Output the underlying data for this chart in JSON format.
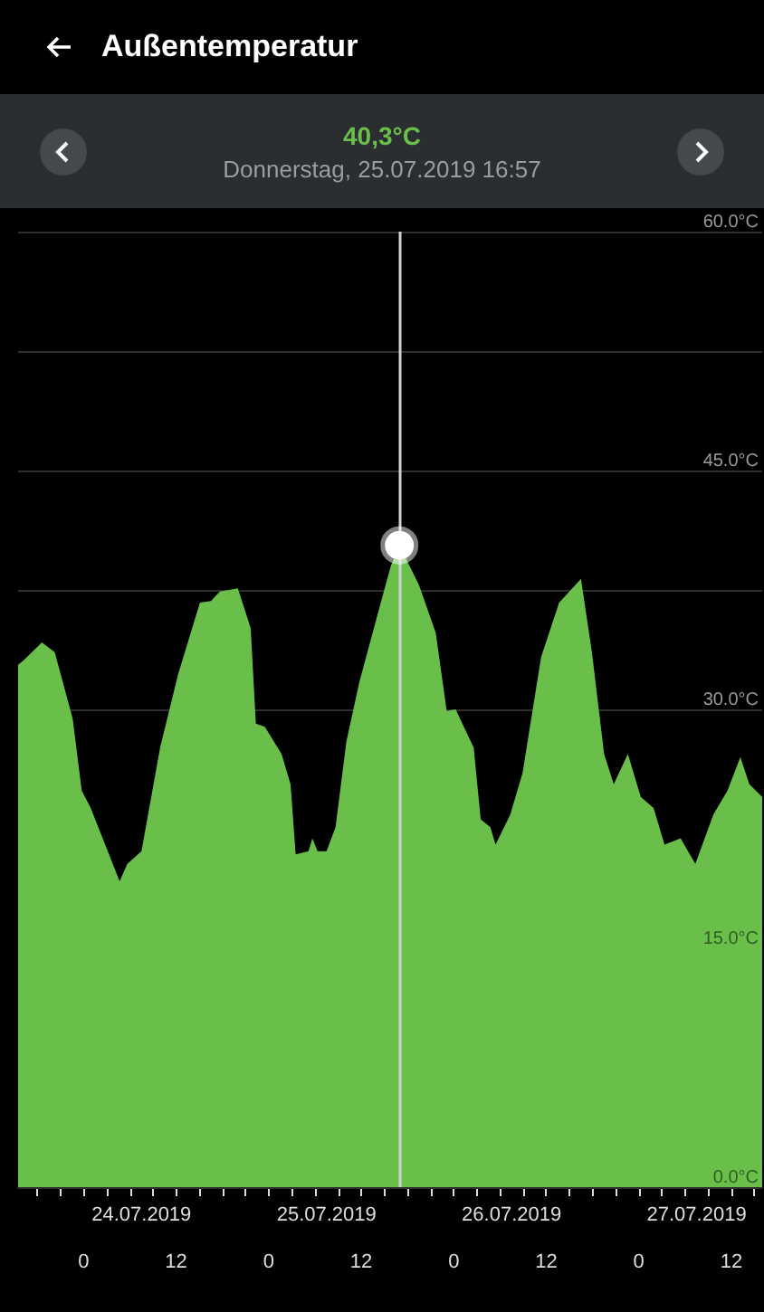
{
  "chart_data": {
    "type": "area",
    "title": "Außentemperatur",
    "annotations": [
      "40,3°C",
      "Donnerstag, 25.07.2019 16:57"
    ],
    "x": [
      "2019-07-23T15:30",
      "2019-07-23T16:15",
      "2019-07-23T18:35",
      "2019-07-23T20:15",
      "2019-07-23T22:35",
      "2019-07-23T23:45",
      "2019-07-24T00:55",
      "2019-07-24T04:40",
      "2019-07-24T05:40",
      "2019-07-24T07:30",
      "2019-07-24T09:55",
      "2019-07-24T12:15",
      "2019-07-24T15:05",
      "2019-07-24T16:30",
      "2019-07-24T17:40",
      "2019-07-24T20:00",
      "2019-07-24T21:40",
      "2019-07-24T22:20",
      "2019-07-24T23:30",
      "2019-07-25T01:40",
      "2019-07-25T02:50",
      "2019-07-25T03:30",
      "2019-07-25T05:10",
      "2019-07-25T05:40",
      "2019-07-25T06:20",
      "2019-07-25T07:30",
      "2019-07-25T08:40",
      "2019-07-25T10:05",
      "2019-07-25T11:45",
      "2019-07-25T14:05",
      "2019-07-25T15:50",
      "2019-07-25T16:57",
      "2019-07-25T19:30",
      "2019-07-25T21:40",
      "2019-07-25T23:05",
      "2019-07-26T00:15",
      "2019-07-26T02:35",
      "2019-07-26T03:30",
      "2019-07-26T04:45",
      "2019-07-26T05:25",
      "2019-07-26T07:20",
      "2019-07-26T08:55",
      "2019-07-26T11:20",
      "2019-07-26T13:40",
      "2019-07-26T16:30",
      "2019-07-26T17:55",
      "2019-07-26T19:30",
      "2019-07-26T20:45",
      "2019-07-26T22:35",
      "2019-07-27T00:15",
      "2019-07-27T01:55",
      "2019-07-27T03:20",
      "2019-07-27T05:25",
      "2019-07-27T07:20",
      "2019-07-27T09:40",
      "2019-07-27T11:30",
      "2019-07-27T13:10",
      "2019-07-27T14:20",
      "2019-07-27T16:00"
    ],
    "series": [
      {
        "color": "#6abf4b",
        "values": [
          32.8,
          33.1,
          34.2,
          33.6,
          29.4,
          24.9,
          23.8,
          19.2,
          20.3,
          21.1,
          27.6,
          32.2,
          36.7,
          36.8,
          37.4,
          37.6,
          35.1,
          29.1,
          28.9,
          27.2,
          25.3,
          20.9,
          21.1,
          21.9,
          21.1,
          21.1,
          22.6,
          28.0,
          31.7,
          35.9,
          39.0,
          40.3,
          37.8,
          34.8,
          29.9,
          30.0,
          27.6,
          23.1,
          22.6,
          21.5,
          23.4,
          26.0,
          33.3,
          36.7,
          38.2,
          33.6,
          27.2,
          25.3,
          27.2,
          24.5,
          23.8,
          21.5,
          21.9,
          20.3,
          23.4,
          24.9,
          27.0,
          25.3,
          24.5
        ]
      }
    ],
    "ylim": [
      0,
      60
    ],
    "yticks": [
      {
        "value": 0,
        "label": "0.0°C"
      },
      {
        "value": 15,
        "label": "15.0°C"
      },
      {
        "value": 30,
        "label": "30.0°C"
      },
      {
        "value": 37.5,
        "label": null
      },
      {
        "value": 45,
        "label": "45.0°C"
      },
      {
        "value": 52.5,
        "label": null
      },
      {
        "value": 60,
        "label": "60.0°C"
      }
    ],
    "xlim": [
      "2019-07-23T15:30",
      "2019-07-27T16:00"
    ],
    "xticks": [
      {
        "value": "2019-07-23T18:00",
        "label": null
      },
      {
        "value": "2019-07-23T21:00",
        "label": null
      },
      {
        "value": "2019-07-24T00:00",
        "label": "0"
      },
      {
        "value": "2019-07-24T03:00",
        "label": null
      },
      {
        "value": "2019-07-24T06:00",
        "label": null
      },
      {
        "value": "2019-07-24T09:00",
        "label": null
      },
      {
        "value": "2019-07-24T12:00",
        "label": "12"
      },
      {
        "value": "2019-07-24T15:00",
        "label": null
      },
      {
        "value": "2019-07-24T18:00",
        "label": null
      },
      {
        "value": "2019-07-24T21:00",
        "label": null
      },
      {
        "value": "2019-07-25T00:00",
        "label": "0"
      },
      {
        "value": "2019-07-25T03:00",
        "label": null
      },
      {
        "value": "2019-07-25T06:00",
        "label": null
      },
      {
        "value": "2019-07-25T09:00",
        "label": null
      },
      {
        "value": "2019-07-25T12:00",
        "label": "12"
      },
      {
        "value": "2019-07-25T15:00",
        "label": null
      },
      {
        "value": "2019-07-25T18:00",
        "label": null
      },
      {
        "value": "2019-07-25T21:00",
        "label": null
      },
      {
        "value": "2019-07-26T00:00",
        "label": "0"
      },
      {
        "value": "2019-07-26T03:00",
        "label": null
      },
      {
        "value": "2019-07-26T06:00",
        "label": null
      },
      {
        "value": "2019-07-26T09:00",
        "label": null
      },
      {
        "value": "2019-07-26T12:00",
        "label": "12"
      },
      {
        "value": "2019-07-26T15:00",
        "label": null
      },
      {
        "value": "2019-07-26T18:00",
        "label": null
      },
      {
        "value": "2019-07-26T21:00",
        "label": null
      },
      {
        "value": "2019-07-27T00:00",
        "label": "0"
      },
      {
        "value": "2019-07-27T03:00",
        "label": null
      },
      {
        "value": "2019-07-27T06:00",
        "label": null
      },
      {
        "value": "2019-07-27T09:00",
        "label": null
      },
      {
        "value": "2019-07-27T12:00",
        "label": "12"
      },
      {
        "value": "2019-07-27T15:00",
        "label": null
      }
    ],
    "x2lim": [
      "2019-07-23T15:30",
      "2019-07-27T16:00"
    ],
    "x2ticks": [
      {
        "value": "2019-07-24T07:30",
        "label": "24.07.2019"
      },
      {
        "value": "2019-07-25T07:30",
        "label": "25.07.2019"
      },
      {
        "value": "2019-07-26T07:30",
        "label": "26.07.2019"
      },
      {
        "value": "2019-07-27T07:30",
        "label": "27.07.2019"
      }
    ],
    "ref_lines": [
      {
        "axis": "x",
        "value": "2019-07-25T16:57",
        "color": "#d0d0d0"
      }
    ],
    "grid": "y",
    "marker": "none"
  }
}
